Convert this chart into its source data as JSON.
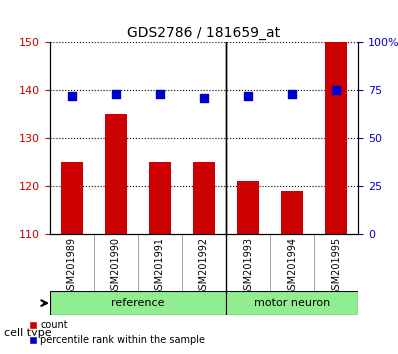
{
  "title": "GDS2786 / 181659_at",
  "samples": [
    "GSM201989",
    "GSM201990",
    "GSM201991",
    "GSM201992",
    "GSM201993",
    "GSM201994",
    "GSM201995"
  ],
  "bar_values": [
    125,
    135,
    125,
    125,
    121,
    119,
    150
  ],
  "scatter_values": [
    72,
    73,
    73,
    71,
    72,
    73,
    75
  ],
  "bar_bottom": 110,
  "ylim_left": [
    110,
    150
  ],
  "ylim_right": [
    0,
    100
  ],
  "yticks_left": [
    110,
    120,
    130,
    140,
    150
  ],
  "yticks_right": [
    0,
    25,
    50,
    75,
    100
  ],
  "bar_color": "#cc0000",
  "scatter_color": "#0000cc",
  "grid_color": "black",
  "reference_samples": [
    "GSM201989",
    "GSM201990",
    "GSM201991",
    "GSM201992"
  ],
  "motor_neuron_samples": [
    "GSM201993",
    "GSM201994",
    "GSM201995"
  ],
  "reference_label": "reference",
  "motor_neuron_label": "motor neuron",
  "cell_type_label": "cell type",
  "legend_count": "count",
  "legend_percentile": "percentile rank within the sample",
  "ref_color": "#90ee90",
  "motor_color": "#90ee90",
  "tick_label_color_left": "#cc0000",
  "tick_label_color_right": "#0000cc",
  "bar_width": 0.5,
  "xlabel_rotation": 90
}
